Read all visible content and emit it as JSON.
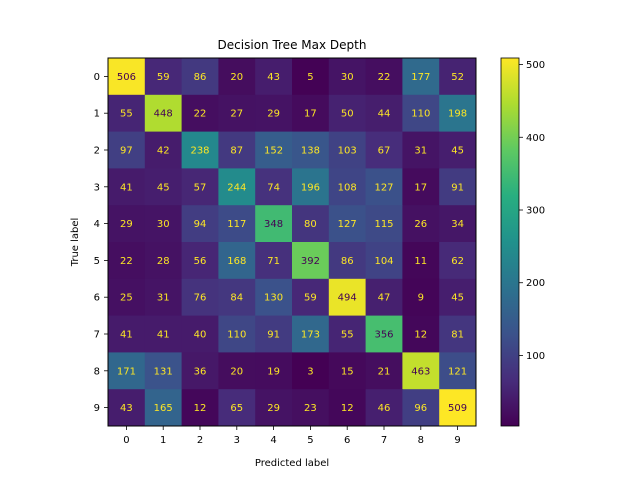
{
  "chart_data": {
    "type": "heatmap",
    "title": "Decision Tree Max Depth",
    "xlabel": "Predicted label",
    "ylabel": "True label",
    "x_categories": [
      "0",
      "1",
      "2",
      "3",
      "4",
      "5",
      "6",
      "7",
      "8",
      "9"
    ],
    "y_categories": [
      "0",
      "1",
      "2",
      "3",
      "4",
      "5",
      "6",
      "7",
      "8",
      "9"
    ],
    "values": [
      [
        506,
        59,
        86,
        20,
        43,
        5,
        30,
        22,
        177,
        52
      ],
      [
        55,
        448,
        22,
        27,
        29,
        17,
        50,
        44,
        110,
        198
      ],
      [
        97,
        42,
        238,
        87,
        152,
        138,
        103,
        67,
        31,
        45
      ],
      [
        41,
        45,
        57,
        244,
        74,
        196,
        108,
        127,
        17,
        91
      ],
      [
        29,
        30,
        94,
        117,
        348,
        80,
        127,
        115,
        26,
        34
      ],
      [
        22,
        28,
        56,
        168,
        71,
        392,
        86,
        104,
        11,
        62
      ],
      [
        25,
        31,
        76,
        84,
        130,
        59,
        494,
        47,
        9,
        45
      ],
      [
        41,
        41,
        40,
        110,
        91,
        173,
        55,
        356,
        12,
        81
      ],
      [
        171,
        131,
        36,
        20,
        19,
        3,
        15,
        21,
        463,
        121
      ],
      [
        43,
        165,
        12,
        65,
        29,
        23,
        12,
        46,
        96,
        509
      ]
    ],
    "colormap": "viridis",
    "vmin": 3,
    "vmax": 509,
    "colorbar_ticks": [
      100,
      200,
      300,
      400,
      500
    ],
    "colorbar_tick_labels": [
      "100",
      "200",
      "300",
      "400",
      "500"
    ],
    "text_color_low": "#fde725",
    "text_color_high": "#440154"
  }
}
